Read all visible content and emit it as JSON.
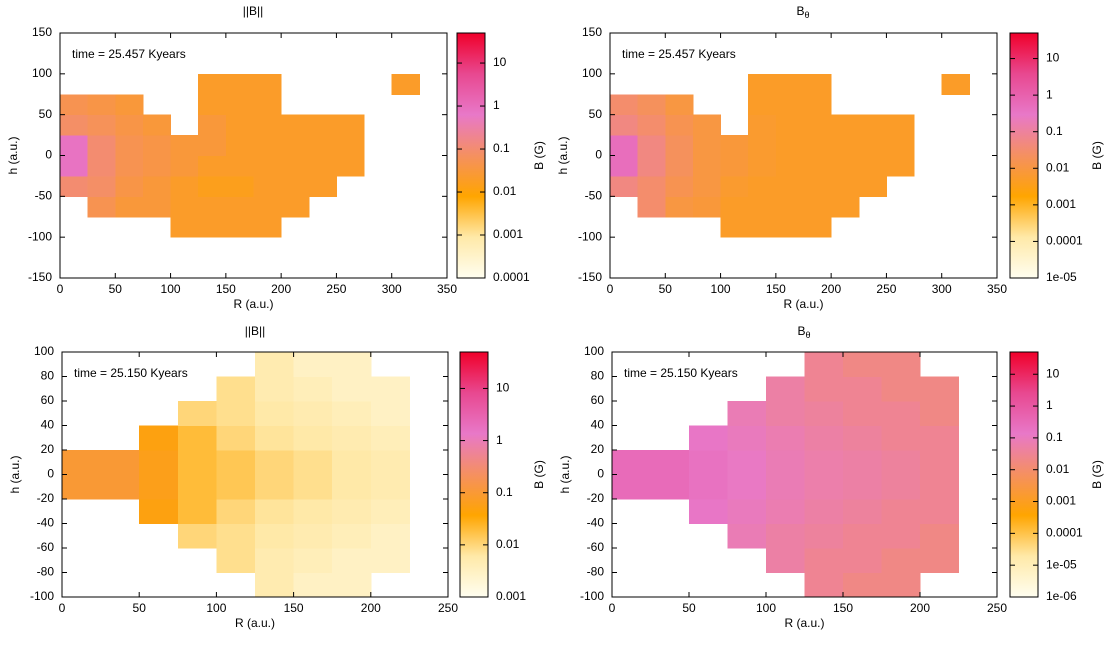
{
  "chart_data": [
    {
      "type": "heatmap",
      "title": "||B||",
      "xlabel": "R (a.u.)",
      "ylabel": "h (a.u.)",
      "zlabel": "B (G)",
      "annotation": "time = 25.457 Kyears",
      "xlim": [
        0,
        350
      ],
      "xticks": [
        0,
        50,
        100,
        150,
        200,
        250,
        300,
        350
      ],
      "ylim": [
        -150,
        150
      ],
      "yticks": [
        -150,
        -100,
        -50,
        0,
        50,
        100,
        150
      ],
      "zlim": [
        0.0001,
        50
      ],
      "zticks": [
        0.0001,
        0.001,
        0.01,
        0.1,
        1,
        10
      ],
      "zlog": true,
      "palette": [
        "#fffef0",
        "#ffe9a8",
        "#ffa500",
        "#f59060",
        "#e878c8",
        "#e84890",
        "#f0002a"
      ],
      "xbins": [
        0,
        25,
        50,
        75,
        100,
        125,
        150,
        175,
        200,
        225,
        250,
        275,
        300,
        325
      ],
      "ybins": [
        -100,
        -75,
        -50,
        -25,
        0,
        25,
        50,
        75,
        100
      ],
      "z": [
        [
          null,
          null,
          null,
          null,
          0.02,
          0.02,
          0.02,
          0.02,
          null,
          null,
          null,
          null,
          null
        ],
        [
          null,
          0.05,
          0.03,
          0.03,
          0.02,
          0.02,
          0.02,
          0.02,
          0.02,
          null,
          null,
          null,
          null
        ],
        [
          0.1,
          0.08,
          0.04,
          0.03,
          0.02,
          0.015,
          0.015,
          0.02,
          0.02,
          0.02,
          null,
          null,
          null
        ],
        [
          0.8,
          0.1,
          0.05,
          0.04,
          0.03,
          0.02,
          0.02,
          0.02,
          0.02,
          0.02,
          0.02,
          null,
          null
        ],
        [
          0.8,
          0.1,
          0.05,
          0.04,
          0.03,
          0.03,
          0.02,
          0.02,
          0.02,
          0.02,
          0.02,
          null,
          null
        ],
        [
          0.08,
          0.06,
          0.04,
          0.03,
          null,
          0.03,
          0.02,
          0.02,
          0.02,
          0.02,
          0.02,
          null,
          null
        ],
        [
          0.05,
          0.04,
          0.03,
          null,
          null,
          0.02,
          0.02,
          0.02,
          null,
          null,
          null,
          null,
          null
        ],
        [
          null,
          null,
          null,
          null,
          null,
          0.02,
          0.02,
          0.02,
          null,
          null,
          null,
          null,
          0.02
        ]
      ]
    },
    {
      "type": "heatmap",
      "title": "B",
      "title_sub": "θ",
      "xlabel": "R (a.u.)",
      "ylabel": "h (a.u.)",
      "zlabel": "B (G)",
      "annotation": "time = 25.457 Kyears",
      "xlim": [
        0,
        350
      ],
      "xticks": [
        0,
        50,
        100,
        150,
        200,
        250,
        300,
        350
      ],
      "ylim": [
        -150,
        150
      ],
      "yticks": [
        -150,
        -100,
        -50,
        0,
        50,
        100,
        150
      ],
      "zlim": [
        1e-05,
        50
      ],
      "zticks": [
        {
          "value": 1e-05,
          "label": "1e-05"
        },
        0.0001,
        0.001,
        0.01,
        0.1,
        1,
        10
      ],
      "zlog": true,
      "palette": [
        "#fffef0",
        "#ffe9a8",
        "#ffa500",
        "#f59060",
        "#e878c8",
        "#e84890",
        "#f0002a"
      ],
      "xbins": [
        0,
        25,
        50,
        75,
        100,
        125,
        150,
        175,
        200,
        225,
        250,
        275,
        300,
        325
      ],
      "ybins": [
        -100,
        -75,
        -50,
        -25,
        0,
        25,
        50,
        75,
        100
      ],
      "z": [
        [
          null,
          null,
          null,
          null,
          0.005,
          0.005,
          0.005,
          0.005,
          null,
          null,
          null,
          null,
          null
        ],
        [
          null,
          0.03,
          0.01,
          0.008,
          0.005,
          0.005,
          0.005,
          0.005,
          0.005,
          null,
          null,
          null,
          null
        ],
        [
          0.05,
          0.03,
          0.015,
          0.01,
          0.006,
          0.005,
          0.005,
          0.005,
          0.005,
          0.005,
          null,
          null,
          null
        ],
        [
          0.5,
          0.05,
          0.02,
          0.01,
          0.008,
          0.006,
          0.005,
          0.005,
          0.005,
          0.005,
          0.005,
          null,
          null
        ],
        [
          0.5,
          0.05,
          0.02,
          0.01,
          0.008,
          0.006,
          0.005,
          0.005,
          0.005,
          0.005,
          0.005,
          null,
          null
        ],
        [
          0.05,
          0.03,
          0.015,
          0.01,
          null,
          0.006,
          0.005,
          0.005,
          0.005,
          0.005,
          0.005,
          null,
          null
        ],
        [
          0.03,
          0.02,
          0.01,
          null,
          null,
          0.005,
          0.005,
          0.005,
          null,
          null,
          null,
          null,
          null
        ],
        [
          null,
          null,
          null,
          null,
          null,
          0.005,
          0.005,
          0.005,
          null,
          null,
          null,
          null,
          0.005
        ]
      ]
    },
    {
      "type": "heatmap",
      "title": "||B||",
      "xlabel": "R (a.u.)",
      "ylabel": "h (a.u.)",
      "zlabel": "B (G)",
      "annotation": "time = 25.150 Kyears",
      "xlim": [
        0,
        250
      ],
      "xticks": [
        0,
        50,
        100,
        150,
        200,
        250
      ],
      "ylim": [
        -100,
        100
      ],
      "yticks": [
        -100,
        -80,
        -60,
        -40,
        -20,
        0,
        20,
        40,
        60,
        80,
        100
      ],
      "zlim": [
        0.001,
        50
      ],
      "zticks": [
        0.001,
        0.01,
        0.1,
        1,
        10
      ],
      "zlog": true,
      "palette": [
        "#fffef0",
        "#ffe9a8",
        "#ffa500",
        "#f59060",
        "#e878c8",
        "#e84890",
        "#f0002a"
      ],
      "xbins": [
        0,
        25,
        50,
        75,
        100,
        125,
        150,
        175,
        200,
        225
      ],
      "ybins": [
        -100,
        -80,
        -60,
        -40,
        -20,
        0,
        20,
        40,
        60,
        80,
        100
      ],
      "z": [
        [
          null,
          null,
          null,
          null,
          null,
          0.005,
          0.003,
          0.003,
          null
        ],
        [
          null,
          null,
          null,
          null,
          0.008,
          0.005,
          0.004,
          0.003,
          0.003
        ],
        [
          null,
          null,
          null,
          0.01,
          0.008,
          0.006,
          0.005,
          0.004,
          0.003
        ],
        [
          null,
          null,
          0.05,
          0.02,
          0.01,
          0.007,
          0.006,
          0.005,
          0.004
        ],
        [
          0.1,
          0.1,
          0.06,
          0.02,
          0.015,
          0.01,
          0.008,
          0.006,
          0.005
        ],
        [
          0.1,
          0.1,
          0.06,
          0.02,
          0.015,
          0.01,
          0.008,
          0.006,
          0.005
        ],
        [
          null,
          null,
          0.05,
          0.02,
          0.01,
          0.007,
          0.006,
          0.005,
          0.004
        ],
        [
          null,
          null,
          null,
          0.01,
          0.008,
          0.006,
          0.005,
          0.004,
          0.003
        ],
        [
          null,
          null,
          null,
          null,
          0.008,
          0.005,
          0.004,
          0.003,
          0.003
        ],
        [
          null,
          null,
          null,
          null,
          null,
          0.005,
          0.003,
          0.003,
          null
        ]
      ]
    },
    {
      "type": "heatmap",
      "title": "B",
      "title_sub": "θ",
      "xlabel": "R (a.u.)",
      "ylabel": "h (a.u.)",
      "zlabel": "B (G)",
      "annotation": "time = 25.150 Kyears",
      "xlim": [
        0,
        250
      ],
      "xticks": [
        0,
        50,
        100,
        150,
        200,
        250
      ],
      "ylim": [
        -100,
        100
      ],
      "yticks": [
        -100,
        -80,
        -60,
        -40,
        -20,
        0,
        20,
        40,
        60,
        80,
        100
      ],
      "zlim": [
        1e-06,
        50
      ],
      "zticks": [
        {
          "value": 1e-06,
          "label": "1e-06"
        },
        {
          "value": 1e-05,
          "label": "1e-05"
        },
        0.0001,
        0.001,
        0.01,
        0.1,
        1,
        10
      ],
      "zlog": true,
      "palette": [
        "#fffef0",
        "#ffe9a8",
        "#ffa500",
        "#f59060",
        "#e878c8",
        "#e84890",
        "#f0002a"
      ],
      "xbins": [
        0,
        25,
        50,
        75,
        100,
        125,
        150,
        175,
        200,
        225
      ],
      "ybins": [
        -100,
        -80,
        -60,
        -40,
        -20,
        0,
        20,
        40,
        60,
        80,
        100
      ],
      "z": [
        [
          null,
          null,
          null,
          null,
          null,
          0.03,
          0.02,
          0.02,
          null
        ],
        [
          null,
          null,
          null,
          null,
          0.05,
          0.03,
          0.03,
          0.02,
          0.02
        ],
        [
          null,
          null,
          null,
          0.08,
          0.05,
          0.04,
          0.03,
          0.03,
          0.02
        ],
        [
          null,
          null,
          0.15,
          0.1,
          0.07,
          0.05,
          0.04,
          0.03,
          0.03
        ],
        [
          0.3,
          0.3,
          0.2,
          0.12,
          0.08,
          0.06,
          0.05,
          0.04,
          0.03
        ],
        [
          0.3,
          0.3,
          0.2,
          0.12,
          0.08,
          0.06,
          0.05,
          0.04,
          0.03
        ],
        [
          null,
          null,
          0.15,
          0.1,
          0.07,
          0.05,
          0.04,
          0.03,
          0.03
        ],
        [
          null,
          null,
          null,
          0.08,
          0.05,
          0.04,
          0.03,
          0.03,
          0.02
        ],
        [
          null,
          null,
          null,
          null,
          0.05,
          0.03,
          0.03,
          0.02,
          0.02
        ],
        [
          null,
          null,
          null,
          null,
          null,
          0.03,
          0.02,
          0.02,
          null
        ]
      ]
    }
  ]
}
